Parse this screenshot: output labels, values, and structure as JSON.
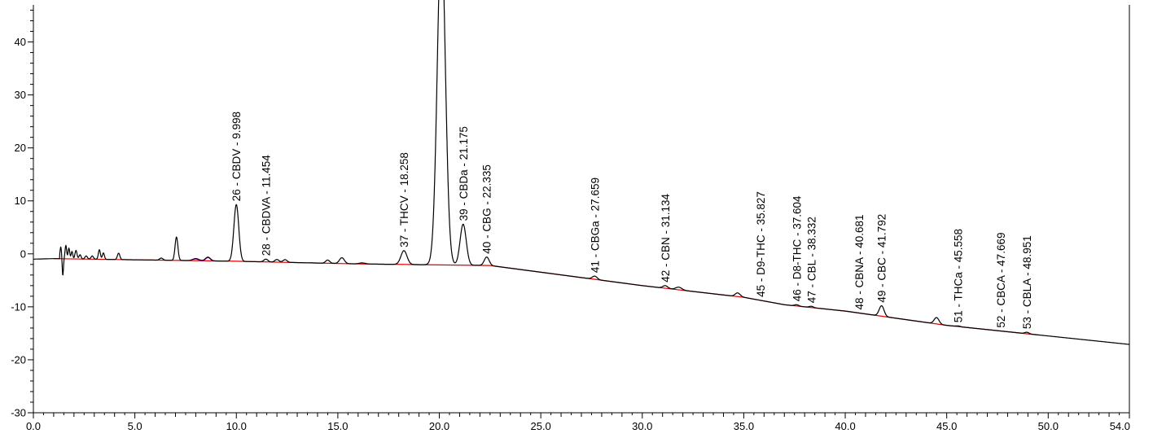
{
  "chart_data": {
    "type": "line",
    "title": "",
    "xlabel": "",
    "ylabel": "",
    "xlim": [
      0.0,
      54.0
    ],
    "ylim": [
      -30,
      47
    ],
    "x_ticks": [
      0.0,
      5.0,
      10.0,
      15.0,
      20.0,
      25.0,
      30.0,
      35.0,
      40.0,
      45.0,
      50.0,
      54.0
    ],
    "x_tick_labels": [
      "0.0",
      "5.0",
      "10.0",
      "15.0",
      "20.0",
      "25.0",
      "30.0",
      "35.0",
      "40.0",
      "45.0",
      "50.0",
      "54.0"
    ],
    "y_ticks": [
      -30,
      -20,
      -10,
      0,
      10,
      20,
      30,
      40
    ],
    "y_tick_labels": [
      "-30",
      "-20",
      "-10",
      "0",
      "10",
      "20",
      "30",
      "40"
    ],
    "grid": false,
    "colors": {
      "signal": "#000000",
      "baseline": "#e00000",
      "minor": "#cc00cc"
    },
    "baseline_points": [
      [
        1.0,
        -0.9
      ],
      [
        10.0,
        -1.4
      ],
      [
        16.0,
        -1.9
      ],
      [
        22.5,
        -2.2
      ],
      [
        30.0,
        -6.0
      ],
      [
        35.0,
        -8.2
      ],
      [
        37.0,
        -9.6
      ],
      [
        40.0,
        -10.8
      ],
      [
        45.0,
        -13.5
      ],
      [
        49.5,
        -15.3
      ]
    ],
    "peaks": [
      {
        "rt": 9.998,
        "height": 9.3,
        "width": 0.12,
        "label": "26 - CBDV - 9.998"
      },
      {
        "rt": 11.454,
        "height": -1.0,
        "width": 0.1,
        "label": "28 - CBDVA - 11.454"
      },
      {
        "rt": 18.258,
        "height": 0.6,
        "width": 0.15,
        "label": "37 - THCV - 18.258"
      },
      {
        "rt": 20.1,
        "height": 60.0,
        "width": 0.2,
        "label": ""
      },
      {
        "rt": 21.175,
        "height": 5.6,
        "width": 0.15,
        "label": "39 - CBDa - 21.175"
      },
      {
        "rt": 22.335,
        "height": -0.6,
        "width": 0.12,
        "label": "40 - CBG - 22.335"
      },
      {
        "rt": 27.659,
        "height": -4.2,
        "width": 0.12,
        "label": "41 - CBGa - 27.659"
      },
      {
        "rt": 31.134,
        "height": -6.0,
        "width": 0.12,
        "label": "42 - CBN - 31.134"
      },
      {
        "rt": 35.827,
        "height": -8.9,
        "width": 0.1,
        "label": "45 - D9-THC - 35.827"
      },
      {
        "rt": 37.604,
        "height": -9.6,
        "width": 0.1,
        "label": "46 - D8-THC - 37.604"
      },
      {
        "rt": 38.332,
        "height": -9.9,
        "width": 0.1,
        "label": "47 - CBL - 38.332"
      },
      {
        "rt": 40.681,
        "height": -11.3,
        "width": 0.1,
        "label": "48 - CBNA - 40.681"
      },
      {
        "rt": 41.792,
        "height": -9.8,
        "width": 0.12,
        "label": "49 - CBC - 41.792"
      },
      {
        "rt": 45.558,
        "height": -13.6,
        "width": 0.1,
        "label": "51 - THCa - 45.558"
      },
      {
        "rt": 47.669,
        "height": -14.6,
        "width": 0.1,
        "label": "52 - CBCA - 47.669"
      },
      {
        "rt": 48.951,
        "height": -14.8,
        "width": 0.1,
        "label": "53 - CBLA - 48.951"
      }
    ]
  }
}
